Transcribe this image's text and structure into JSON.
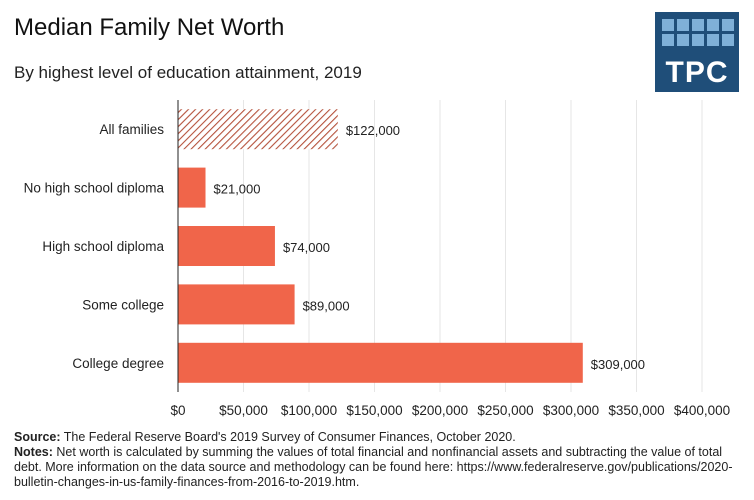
{
  "header": {
    "title": "Median Family Net Worth",
    "subtitle": "By highest level of education attainment, 2019",
    "logo_text": "TPC"
  },
  "chart_data": {
    "type": "bar",
    "orientation": "horizontal",
    "title": "Median Family Net Worth",
    "subtitle": "By highest level of education attainment, 2019",
    "categories": [
      "All families",
      "No high school diploma",
      "High school diploma",
      "Some college",
      "College degree"
    ],
    "values": [
      122000,
      21000,
      74000,
      89000,
      309000
    ],
    "value_labels": [
      "$122,000",
      "$21,000",
      "$74,000",
      "$89,000",
      "$309,000"
    ],
    "highlight": [
      "hatched",
      "solid",
      "solid",
      "solid",
      "solid"
    ],
    "xlim": [
      0,
      400000
    ],
    "x_ticks": [
      0,
      50000,
      100000,
      150000,
      200000,
      250000,
      300000,
      350000,
      400000
    ],
    "x_tick_labels": [
      "$0",
      "$50,000",
      "$100,000",
      "$150,000",
      "$200,000",
      "$250,000",
      "$300,000",
      "$350,000",
      "$400,000"
    ],
    "xlabel": "",
    "ylabel": "",
    "grid": true,
    "bar_color": "#f0654a"
  },
  "footer": {
    "source_label": "Source:",
    "source_text": "The Federal Reserve Board's 2019 Survey of Consumer Finances, October 2020.",
    "notes_label": "Notes:",
    "notes_text": "Net worth is calculated by summing the values of total financial and nonfinancial assets and subtracting the value of total debt. More information on the data source and methodology can be found here: https://www.federalreserve.gov/publications/2020-bulletin-changes-in-us-family-finances-from-2016-to-2019.htm."
  }
}
